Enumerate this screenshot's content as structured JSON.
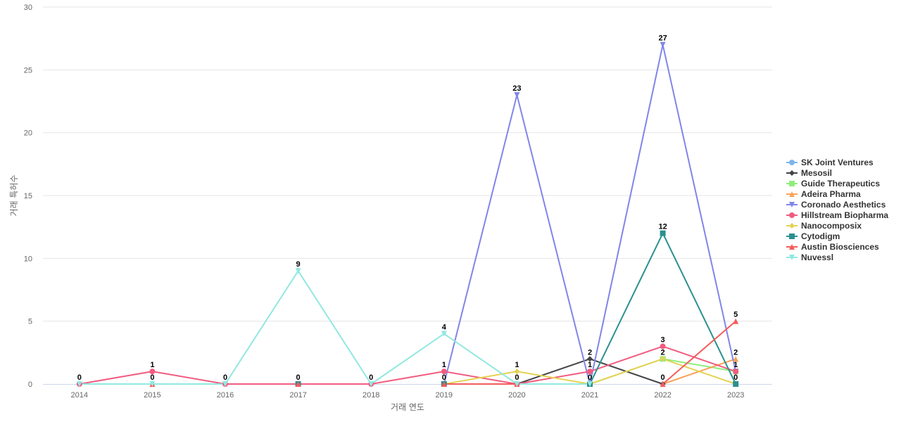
{
  "chart_data": {
    "type": "line",
    "title": "",
    "xlabel": "거래 연도",
    "ylabel": "거래 특허수",
    "ylim": [
      0,
      30
    ],
    "y_ticks": [
      0,
      5,
      10,
      15,
      20,
      25,
      30
    ],
    "grid": true,
    "legend_position": "right",
    "categories": [
      "2014",
      "2015",
      "2016",
      "2017",
      "2018",
      "2019",
      "2020",
      "2021",
      "2022",
      "2023"
    ],
    "series": [
      {
        "name": "SK Joint Ventures",
        "color": "#7cb5ec",
        "marker": "circle",
        "values": [
          null,
          null,
          null,
          null,
          null,
          null,
          null,
          null,
          null,
          1
        ]
      },
      {
        "name": "Mesosil",
        "color": "#434348",
        "marker": "diamond",
        "values": [
          null,
          null,
          null,
          null,
          null,
          null,
          0,
          2,
          0,
          null
        ]
      },
      {
        "name": "Guide Therapeutics",
        "color": "#90ed7d",
        "marker": "square",
        "values": [
          null,
          null,
          null,
          null,
          null,
          null,
          null,
          0,
          2,
          1
        ]
      },
      {
        "name": "Adeira Pharma",
        "color": "#f7a35c",
        "marker": "triangle",
        "values": [
          null,
          null,
          null,
          null,
          null,
          null,
          null,
          null,
          0,
          2
        ]
      },
      {
        "name": "Coronado Aesthetics",
        "color": "#8085e9",
        "marker": "triangle-down",
        "values": [
          null,
          null,
          null,
          null,
          null,
          0,
          23,
          0,
          27,
          1
        ]
      },
      {
        "name": "Hillstream Biopharma",
        "color": "#f15c80",
        "marker": "circle",
        "values": [
          0,
          1,
          0,
          0,
          0,
          1,
          0,
          1,
          3,
          1
        ]
      },
      {
        "name": "Nanocomposix",
        "color": "#e4d354",
        "marker": "diamond",
        "values": [
          null,
          null,
          null,
          null,
          null,
          0,
          1,
          0,
          2,
          0
        ]
      },
      {
        "name": "Cytodigm",
        "color": "#2b908f",
        "marker": "square",
        "values": [
          null,
          null,
          null,
          0,
          null,
          0,
          null,
          0,
          12,
          0
        ]
      },
      {
        "name": "Austin Biosciences",
        "color": "#f45b5b",
        "marker": "triangle",
        "values": [
          null,
          0,
          null,
          0,
          null,
          0,
          0,
          null,
          0,
          5
        ]
      },
      {
        "name": "Nuvessl",
        "color": "#91e8e1",
        "marker": "triangle-down",
        "values": [
          0,
          0,
          0,
          9,
          0,
          4,
          0,
          0,
          null,
          null
        ]
      }
    ],
    "data_labels": [
      {
        "x": "2014",
        "value": 0
      },
      {
        "x": "2015",
        "value": 1
      },
      {
        "x": "2015",
        "value": 0
      },
      {
        "x": "2016",
        "value": 0
      },
      {
        "x": "2017",
        "value": 9
      },
      {
        "x": "2017",
        "value": 0
      },
      {
        "x": "2018",
        "value": 0
      },
      {
        "x": "2019",
        "value": 4
      },
      {
        "x": "2019",
        "value": 1
      },
      {
        "x": "2019",
        "value": 0
      },
      {
        "x": "2020",
        "value": 23
      },
      {
        "x": "2020",
        "value": 1
      },
      {
        "x": "2020",
        "value": 0
      },
      {
        "x": "2021",
        "value": 2
      },
      {
        "x": "2021",
        "value": 1
      },
      {
        "x": "2021",
        "value": 0
      },
      {
        "x": "2022",
        "value": 27
      },
      {
        "x": "2022",
        "value": 12
      },
      {
        "x": "2022",
        "value": 3
      },
      {
        "x": "2022",
        "value": 2
      },
      {
        "x": "2022",
        "value": 0
      },
      {
        "x": "2023",
        "value": 5
      },
      {
        "x": "2023",
        "value": 2
      },
      {
        "x": "2023",
        "value": 1
      },
      {
        "x": "2023",
        "value": 0
      }
    ]
  }
}
